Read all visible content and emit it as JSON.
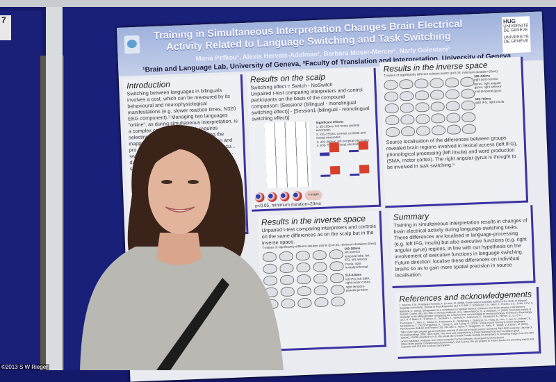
{
  "photo_credit": "©2013 S W Rieger",
  "board_number": "7",
  "poster": {
    "title": "Training in Simultaneous Interpretation Changes Brain Electrical Activity Related to Language Switching and Task Switching",
    "authors": "Maria Pefkou¹, Alexis Hervais-Adelman¹, Barbara Moser-Mercer², Narly Golestani¹",
    "affiliations": "¹Brain and Language Lab, University of Geneva, ²Faculty of Translation and Interpretation, University of Geneva",
    "logos": [
      "HUG",
      "UNIVERSITÉ DE GENÈVE",
      "UNIVERSITÉ DE GENÈVE"
    ],
    "introduction": {
      "heading": "Introduction",
      "text": "Switching between languages in bilinguals involves a cost, which can be measured by its behavioural and neurophysiological manifestations (e.g. slower reaction times, N320 EEG component).¹ Managing two languages \"online\", as during simultaneous interpretation, is a complex cognitive task which requires selecting the appropriate and inhibiting the inappropriate language ... comprehension and pro... this task can be exp... underlying execu... switching. Such... bilingualism ... bilingualism ... diseases ... language ... monoling... Here, we ... signatu... individ... simu..."
    },
    "scalp": {
      "heading": "Results on the scalp",
      "line1": "Switching effect = Switch - NoSwitch",
      "text": "Unpaired t-test comparing interpreters and control participants on the basis of the compound comparison: [Session2 (bilingual - monolingual switching effect)] - [Session1 (bilingual - monolingual switching effect)]",
      "effects_heading": "Significant effects:",
      "effects": [
        "1. 85-105ms: left fronto-parietal electrodes",
        "2. 205-255ms: central, occipital and frontal electrodes",
        "3. 320-360ms: left occipital electrodes",
        "4. 600-750ms: frontal electrodes"
      ],
      "tmaps": "t-maps",
      "footnote": "p<0.05, minimum duration=20ms",
      "colors": {
        "interpreters": "#3a35a0",
        "controls": "#d8402c"
      }
    },
    "inverse_left": {
      "heading": "Results in the inverse space",
      "text": "Unpaired t-test comparing interpreters and controls on the same differences as on the scalp but in the inverse space.",
      "caption": "T-values of significantly different solution points (p<0.05, minimum duration=20ms)",
      "windows": [
        {
          "time": "160-185ms",
          "regions": "left anterior temporal lobe, left IFG, left anterior insula, right frontal/prefrontal"
        },
        {
          "time": "516-620ms",
          "regions": "left IFG, left SMA, right motor cortex, right temporo-parietal junction"
        }
      ]
    },
    "inverse_right": {
      "heading": "Results in the inverse space",
      "caption": "T-values of significantly different solution points (p<0.05, minimum duration=20ms)",
      "windows": [
        {
          "time": "395-430ms",
          "regions": "right post-central gyrus, right angular gyrus, right anterior mid-temporal gyrus"
        },
        {
          "time": "665-700ms",
          "regions": "right IFG, right insula"
        }
      ],
      "text": "Source localisation of the differences between groups revealed brain regions involved in lexical access (left IFG), phonological processing (left insula) and word production (SMA, motor cortex). The right angular gyrus is thought to be involved in task switching.⁵"
    },
    "summary": {
      "heading": "Summary",
      "p1": "Training in simultaneous interpretation results in changes of brain electrical activity during language-switching tasks.",
      "p2": "These differences are localised in language-processing (e.g. left IFG, insula) but also executive functions (e.g. right angular gyrus) regions, in line with our hypothesis on the involvement of executive functions in language switching.",
      "p3": "Future direction: localise these differences on individual brains so as to gain more spatial precision in source localisation."
    },
    "references": {
      "heading": "References and acknowledgements",
      "text": "1. Moreno, E.M., Rodriguez-Fornells, A. & Laine, M. (2008). Event-related potentials (ERPs) in the study of bilingual language processing. Journal of Neurolinguistics (21) 477-508. 2. Schweizer, T.A., Ware, J., Fischer, C.E., Craik, F.I.M. & Bialystok, E. (2012). Bilingualism as a contributor to cognitive reserve: Evidence from brain atrophy in Alzheimer's disease. Cortex (48), 991-996. 3. Hervais-Adelman, A.G., Moser-Mercer, B. & Golestani, N. (2011). Executive control of language in the bilingual brain: integrating the evidence from neuroimaging to neuropsychology. Frontiers in Psychology (2), 1-8. 4. Bates, E., D'Amico, S., Jacobsen, T., Szekely, A., Andonova, E., Devescovi, A., Herron, D., Lu, C.C., Pechmann, T., Pleh, C., Wicha, N., Federmeier, K., Gerdjikova, I., Gutierrez, G., Hung, D., Hsu, J., Iyer, G., Kohnert, K., Mehotcheva, T., Orozco-Figueroa, A., Tzeng, A., and Tzeng, O. (2003). Timed picture naming in seven languages. Psychonomic Bulletin and Review (10), 344-380. 5. Taylor, P., Muggleton, N., Kalla, R., Walsh, V. & Eimer, M. (2011). TMS of the right angular gyrus modulates priming of pop-out in visual search: combined TMS-ERP evidence. Journal of Neurophysiology (106), 3001-3009. This work was supported by a Swiss National Science Foundation grant 320030_122085 awarded to N.G. We would like to thank Frauke Hellwig for assistance in providing images from the MPI picture database. Analyses were done using the Cartool software, developed by Denis Brunet (https://sites.google.com/site/cartoolcommunity/), and sLoreta. We are grateful to Robert Becker for providing scripts and expertise with ICA and to all our participants."
    }
  }
}
